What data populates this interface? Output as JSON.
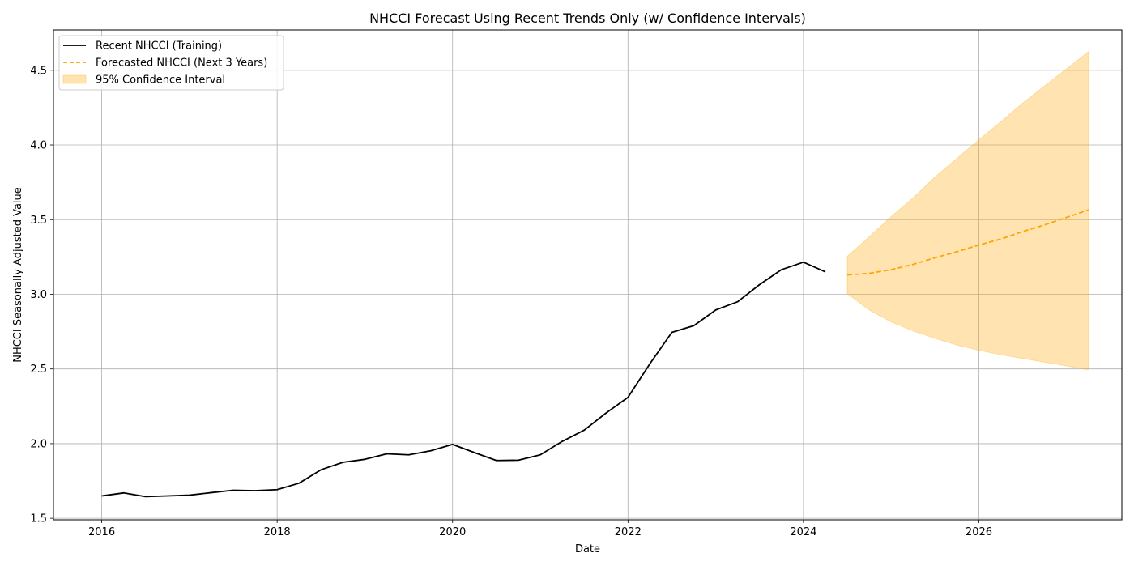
{
  "chart_data": {
    "type": "line",
    "title": "NHCCI Forecast Using Recent Trends Only (w/ Confidence Intervals)",
    "xlabel": "Date",
    "ylabel": "NHCCI Seasonally Adjusted Value",
    "xlim": [
      2015.45,
      2027.63
    ],
    "ylim": [
      1.49,
      4.77
    ],
    "x_ticks": [
      2016,
      2018,
      2020,
      2022,
      2024,
      2026
    ],
    "y_ticks": [
      1.5,
      2.0,
      2.5,
      3.0,
      3.5,
      4.0,
      4.5
    ],
    "grid": true,
    "legend": {
      "placement": "top-left"
    },
    "series": [
      {
        "name": "Recent NHCCI (Training)",
        "kind": "line",
        "color": "#000000",
        "style": "solid",
        "x": [
          2016.0,
          2016.25,
          2016.5,
          2016.75,
          2017.0,
          2017.25,
          2017.5,
          2017.75,
          2018.0,
          2018.25,
          2018.5,
          2018.75,
          2019.0,
          2019.25,
          2019.5,
          2019.75,
          2020.0,
          2020.25,
          2020.5,
          2020.75,
          2021.0,
          2021.25,
          2021.5,
          2021.75,
          2022.0,
          2022.25,
          2022.5,
          2022.75,
          2023.0,
          2023.25,
          2023.5,
          2023.75,
          2024.0,
          2024.25
        ],
        "y": [
          1.65,
          1.67,
          1.645,
          1.65,
          1.655,
          1.672,
          1.688,
          1.685,
          1.692,
          1.735,
          1.825,
          1.875,
          1.895,
          1.932,
          1.925,
          1.952,
          1.995,
          1.94,
          1.887,
          1.889,
          1.925,
          2.015,
          2.09,
          2.205,
          2.31,
          2.535,
          2.745,
          2.79,
          2.895,
          2.95,
          3.065,
          3.165,
          3.215,
          3.15
        ]
      },
      {
        "name": "Forecasted NHCCI (Next 3 Years)",
        "kind": "line",
        "color": "#ffa500",
        "style": "dashed",
        "x": [
          2024.5,
          2024.75,
          2025.0,
          2025.25,
          2025.5,
          2025.75,
          2026.0,
          2026.25,
          2026.5,
          2026.75,
          2027.0,
          2027.25
        ],
        "y": [
          3.13,
          3.14,
          3.165,
          3.2,
          3.245,
          3.285,
          3.33,
          3.37,
          3.42,
          3.465,
          3.515,
          3.565
        ]
      },
      {
        "name": "95% Confidence Interval",
        "kind": "band",
        "color": "#ffa500",
        "x": [
          2024.5,
          2024.75,
          2025.0,
          2025.25,
          2025.5,
          2025.75,
          2026.0,
          2026.25,
          2026.5,
          2026.75,
          2027.0,
          2027.25
        ],
        "lower": [
          3.005,
          2.895,
          2.815,
          2.755,
          2.705,
          2.66,
          2.625,
          2.595,
          2.57,
          2.545,
          2.52,
          2.495
        ],
        "upper": [
          3.255,
          3.385,
          3.52,
          3.645,
          3.785,
          3.91,
          4.035,
          4.155,
          4.28,
          4.395,
          4.51,
          4.625
        ]
      }
    ]
  }
}
